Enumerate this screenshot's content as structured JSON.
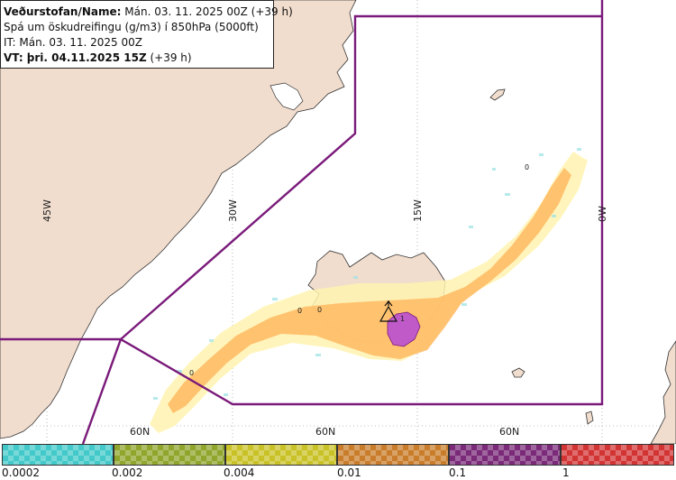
{
  "header": {
    "line1_label": "Veðurstofan/Name:",
    "line1_value": " Mán. 03. 11. 2025 00Z (+39 h)",
    "line2": "Spá um öskudreifingu (g/m3) í 850hPa (5000ft)",
    "line3": "IT: Mán. 03. 11. 2025 00Z",
    "line4_label": "VT: þri. 04.11.2025 15Z",
    "line4_value": " (+39 h)"
  },
  "map": {
    "meridian_labels": [
      "45W",
      "30W",
      "15W",
      "0W"
    ],
    "parallel_labels": [
      "60N",
      "60N",
      "60N"
    ],
    "contour_labels": [
      "0",
      "0",
      "0",
      "0",
      "1"
    ],
    "colors": {
      "land": "#f1ddce",
      "sea": "#ffffff",
      "boundary": "#7a1a7a",
      "light": "#fff3b0",
      "orange": "#ffbd66",
      "purple": "#c05ac8"
    }
  },
  "legend": {
    "colors": [
      "#43c9c9",
      "#8fa52c",
      "#c9c227",
      "#c97d2b",
      "#7a2a78",
      "#d23434"
    ],
    "tick_labels": [
      "0.0002",
      "0.002",
      "0.004",
      "0.01",
      "0.1",
      "1"
    ]
  }
}
